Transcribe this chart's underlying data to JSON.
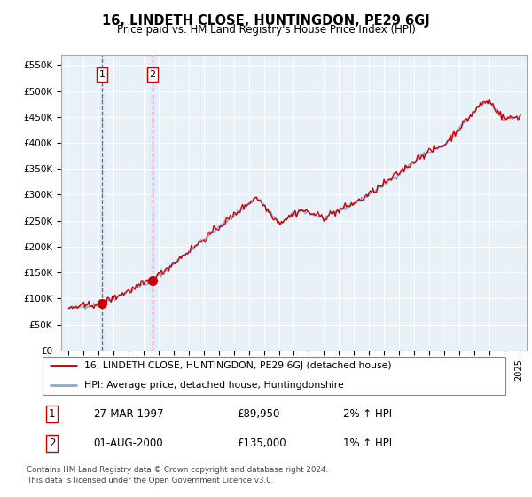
{
  "title": "16, LINDETH CLOSE, HUNTINGDON, PE29 6GJ",
  "subtitle": "Price paid vs. HM Land Registry's House Price Index (HPI)",
  "legend_line1": "16, LINDETH CLOSE, HUNTINGDON, PE29 6GJ (detached house)",
  "legend_line2": "HPI: Average price, detached house, Huntingdonshire",
  "transaction1_date": "27-MAR-1997",
  "transaction1_price": 89950,
  "transaction1_price_str": "£89,950",
  "transaction1_hpi": "2% ↑ HPI",
  "transaction1_year": 1997.21,
  "transaction2_date": "01-AUG-2000",
  "transaction2_price": 135000,
  "transaction2_price_str": "£135,000",
  "transaction2_hpi": "1% ↑ HPI",
  "transaction2_year": 2000.58,
  "footer": "Contains HM Land Registry data © Crown copyright and database right 2024.\nThis data is licensed under the Open Government Licence v3.0.",
  "ylim": [
    0,
    570000
  ],
  "yticks": [
    0,
    50000,
    100000,
    150000,
    200000,
    250000,
    300000,
    350000,
    400000,
    450000,
    500000,
    550000
  ],
  "ytick_labels": [
    "£0",
    "£50K",
    "£100K",
    "£150K",
    "£200K",
    "£250K",
    "£300K",
    "£350K",
    "£400K",
    "£450K",
    "£500K",
    "£550K"
  ],
  "xlim_left": 1994.5,
  "xlim_right": 2025.5,
  "color_price": "#cc0000",
  "color_hpi": "#7aacda",
  "color_vline": "#cc0000",
  "color_vspan": "#ddeeff",
  "plot_bg": "#e8f0f8",
  "grid_color": "#ffffff",
  "spine_color": "#aaaaaa"
}
